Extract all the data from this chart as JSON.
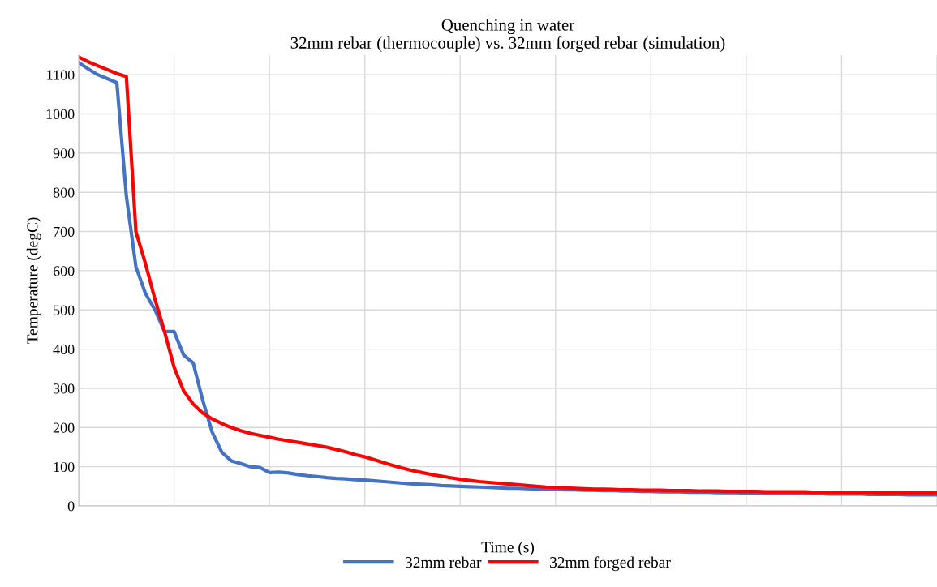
{
  "chart_data": {
    "type": "line",
    "title": "Quenching in water\n32mm rebar (thermocouple) vs. 32mm forged rebar (simulation)",
    "xlabel": "Time (s)",
    "ylabel": "Temperature (degC)",
    "categories": [
      null,
      null,
      null,
      null,
      null,
      null,
      null,
      null,
      null,
      null,
      null,
      null,
      null,
      null,
      null,
      null,
      null,
      null,
      null,
      null,
      null,
      null,
      null,
      null,
      null,
      null,
      null,
      null,
      null,
      null,
      null,
      null,
      null,
      null,
      null,
      null,
      null,
      null,
      null,
      null,
      null,
      null,
      null,
      null,
      null,
      null,
      null,
      null,
      null,
      null,
      null,
      null,
      null,
      null,
      null,
      null,
      null,
      null,
      null,
      null,
      null,
      null,
      null,
      null,
      null,
      null,
      null,
      null,
      null,
      null,
      null,
      null,
      null,
      null,
      null,
      null,
      null,
      null,
      null,
      null,
      null,
      null,
      null,
      null,
      null,
      null,
      null,
      null,
      null,
      null,
      null
    ],
    "series": [
      {
        "name": "32mm rebar",
        "color": "#4472c4",
        "values": [
          1131,
          1115,
          1100,
          1090,
          1080,
          790,
          610,
          542,
          500,
          445,
          445,
          385,
          365,
          270,
          188,
          137,
          115,
          108,
          100,
          98,
          85,
          86,
          84,
          80,
          77,
          75,
          72,
          70,
          69,
          67,
          66,
          64,
          62,
          60,
          58,
          56,
          55,
          54,
          52,
          51,
          50,
          49,
          48,
          47,
          46,
          45,
          45,
          44,
          43,
          43,
          42,
          41,
          41,
          40,
          40,
          39,
          39,
          38,
          38,
          37,
          37,
          36,
          36,
          36,
          35,
          35,
          35,
          34,
          34,
          34,
          33,
          33,
          33,
          32,
          32,
          32,
          31,
          31,
          31,
          30,
          30,
          30,
          30,
          29,
          29,
          29,
          29,
          28,
          28,
          28,
          28
        ]
      },
      {
        "name": "32mm forged rebar",
        "color": "#ff0000",
        "values": [
          1145,
          1133,
          1123,
          1113,
          1103,
          1095,
          700,
          618,
          527,
          445,
          354,
          294,
          260,
          237,
          222,
          210,
          200,
          192,
          185,
          180,
          175,
          170,
          166,
          162,
          158,
          154,
          150,
          144,
          138,
          131,
          125,
          118,
          110,
          103,
          96,
          90,
          85,
          80,
          76,
          72,
          68,
          65,
          62,
          60,
          58,
          56,
          54,
          52,
          50,
          48,
          47,
          46,
          45,
          44,
          43,
          43,
          42,
          41,
          41,
          40,
          40,
          40,
          39,
          39,
          39,
          38,
          38,
          38,
          37,
          37,
          37,
          37,
          36,
          36,
          36,
          36,
          36,
          35,
          35,
          35,
          35,
          35,
          35,
          35,
          34,
          34,
          34,
          34,
          34,
          34,
          34
        ]
      }
    ],
    "ylim": [
      0,
      1150
    ],
    "yticks": [
      0,
      100,
      200,
      300,
      400,
      500,
      600,
      700,
      800,
      900,
      1000,
      1100
    ],
    "grid": true,
    "legend": "bottom",
    "marker": "none",
    "line_style": "solid"
  }
}
